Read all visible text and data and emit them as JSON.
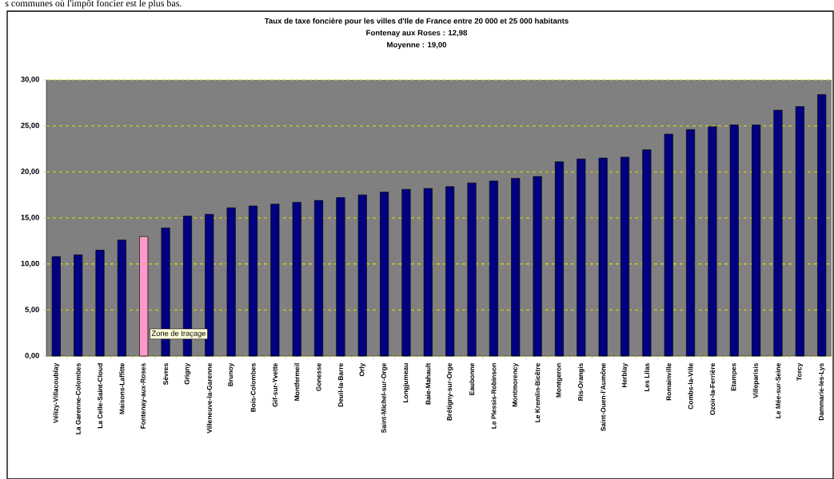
{
  "chart_data": {
    "type": "bar",
    "title": "Taux de taxe foncière pour les villes d'Ile de France entre  20 000 et 25 000 habitants",
    "subtitle": "Fontenay aux Roses : 12,98",
    "annotations": [
      "Moyenne : 19,00",
      "Zone de traçage",
      "s communes où l'impôt foncier est le plus bas."
    ],
    "categories": [
      "Vélizy-Villacoublay",
      "La Garenne-Colombes",
      "La Celle-Saint-Cloud",
      "Maisons-Laffitte",
      "Fontenay-aux-Roses",
      "Sèvres",
      "Grigny",
      "Villeneuve-la-Garenne",
      "Brunoy",
      "Bois-Colombes",
      "Gif-sur-Yvette",
      "Montfermeil",
      "Gonesse",
      "Deuil-la-Barre",
      "Orly",
      "Saint-Michel-sur-Orge",
      "Longjumeau",
      "Baie-Mahault",
      "Brétigny-sur-Orge",
      "Eaubonne",
      "Le Plessis-Robinson",
      "Montmorency",
      "Le Kremlin-Bicêtre",
      "Montgeron",
      "Ris-Orangis",
      "Saint-Ouen-l'Aumône",
      "Herblay",
      "Les Lilas",
      "Romainville",
      "Combs-la-Ville",
      "Ozoir-la-Ferrière",
      "Etampes",
      "Villeparisis",
      "Le Mée-sur-Seine",
      "Torcy",
      "Dammarie-les-Lys"
    ],
    "values": [
      10.8,
      11.0,
      11.5,
      12.6,
      12.98,
      13.9,
      15.2,
      15.4,
      16.1,
      16.3,
      16.5,
      16.7,
      16.9,
      17.2,
      17.5,
      17.8,
      18.1,
      18.2,
      18.4,
      18.8,
      19.0,
      19.3,
      19.5,
      21.1,
      21.4,
      21.5,
      21.6,
      22.4,
      24.1,
      24.6,
      24.9,
      25.1,
      25.1,
      26.7,
      27.1,
      28.4
    ],
    "colors": [
      "#000080",
      "#000080",
      "#000080",
      "#000080",
      "#ff99cc",
      "#000080",
      "#000080",
      "#000080",
      "#000080",
      "#000080",
      "#000080",
      "#000080",
      "#000080",
      "#000080",
      "#000080",
      "#000080",
      "#000080",
      "#000080",
      "#000080",
      "#000080",
      "#000080",
      "#000080",
      "#000080",
      "#000080",
      "#000080",
      "#000080",
      "#000080",
      "#000080",
      "#000080",
      "#000080",
      "#000080",
      "#000080",
      "#000080",
      "#000080",
      "#000080",
      "#000080"
    ],
    "ylim": [
      0,
      30
    ],
    "yticks": [
      {
        "value": 0,
        "label": "0,00"
      },
      {
        "value": 5,
        "label": "5,00"
      },
      {
        "value": 10,
        "label": "10,00"
      },
      {
        "value": 15,
        "label": "15,00"
      },
      {
        "value": 20,
        "label": "20,00"
      },
      {
        "value": 25,
        "label": "25,00"
      },
      {
        "value": 30,
        "label": "30,00"
      }
    ],
    "grid": "y"
  }
}
